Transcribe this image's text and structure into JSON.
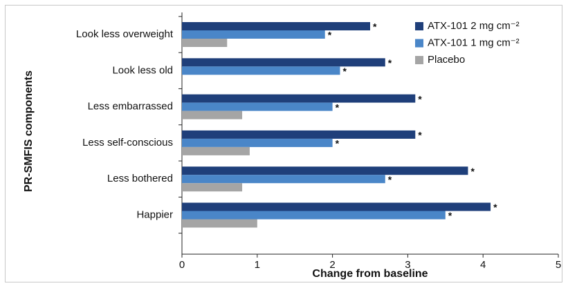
{
  "chart_data": {
    "type": "hbar",
    "x_label": "Change from baseline",
    "y_label": "PR-SMFIS components",
    "categories": [
      "Look less overweight",
      "Look less old",
      "Less embarrassed",
      "Less self-conscious",
      "Less bothered",
      "Happier"
    ],
    "series": [
      {
        "name": "ATX-101 2 mg cm⁻²",
        "color": "#1f3f7a",
        "values": [
          2.5,
          2.7,
          3.1,
          3.1,
          3.8,
          4.1
        ],
        "significant": [
          true,
          true,
          true,
          true,
          true,
          true
        ]
      },
      {
        "name": "ATX-101 1 mg cm⁻²",
        "color": "#4a86c8",
        "values": [
          1.9,
          2.1,
          2.0,
          2.0,
          2.7,
          3.5
        ],
        "significant": [
          true,
          true,
          true,
          true,
          true,
          true
        ]
      },
      {
        "name": "Placebo",
        "color": "#a5a5a5",
        "values": [
          0.6,
          null,
          0.8,
          0.9,
          0.8,
          1.0
        ],
        "significant": [
          false,
          false,
          false,
          false,
          false,
          false
        ]
      }
    ],
    "significance_label": "*",
    "xlim": [
      0,
      5
    ],
    "xticks": [
      0,
      1,
      2,
      3,
      4,
      5
    ],
    "legend": "top-right"
  }
}
